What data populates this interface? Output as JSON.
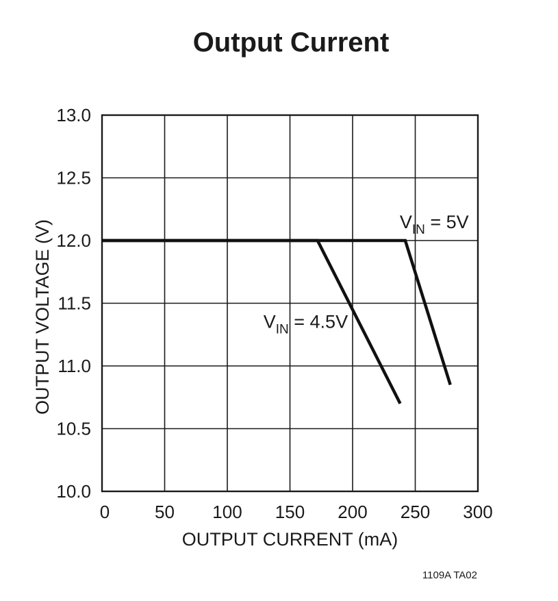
{
  "chart_data": {
    "type": "line",
    "title": "Output Current",
    "xlabel": "OUTPUT CURRENT (mA)",
    "ylabel": "OUTPUT VOLTAGE (V)",
    "xlim": [
      0,
      300
    ],
    "ylim": [
      10.0,
      13.0
    ],
    "x_ticks": [
      0,
      50,
      100,
      150,
      200,
      250,
      300
    ],
    "y_ticks": [
      10.0,
      10.5,
      11.0,
      11.5,
      12.0,
      12.5,
      13.0
    ],
    "x_tick_labels": [
      "0",
      "50",
      "100",
      "150",
      "200",
      "250",
      "300"
    ],
    "y_tick_labels": [
      "10.0",
      "10.5",
      "11.0",
      "11.5",
      "12.0",
      "12.5",
      "13.0"
    ],
    "grid": true,
    "colors": {
      "line": "#111111",
      "grid": "#1a1a1a"
    },
    "series": [
      {
        "label_main": "V",
        "label_sub": "IN",
        "label_rest": " = 5V",
        "x": [
          0,
          242,
          278
        ],
        "y": [
          12.0,
          12.0,
          10.85
        ]
      },
      {
        "label_main": "V",
        "label_sub": "IN",
        "label_rest": " = 4.5V",
        "x": [
          0,
          172,
          238
        ],
        "y": [
          12.0,
          12.0,
          10.7
        ]
      }
    ]
  },
  "footnote": "1109A TA02"
}
